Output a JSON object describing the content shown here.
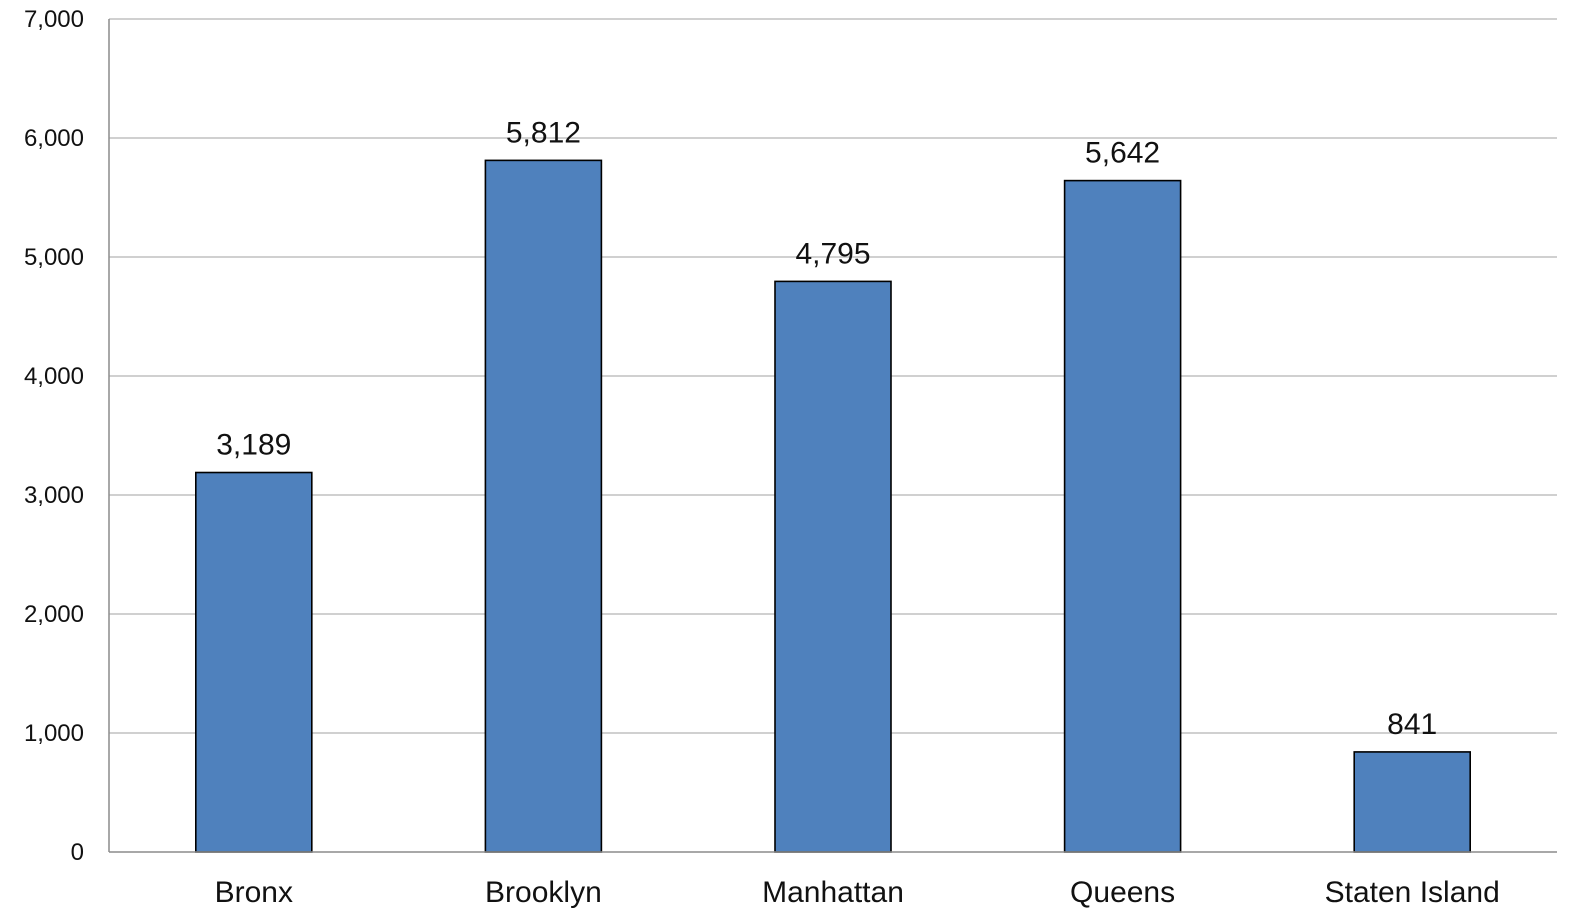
{
  "chart_data": {
    "type": "bar",
    "title": "",
    "xlabel": "",
    "ylabel": "",
    "categories": [
      "Bronx",
      "Brooklyn",
      "Manhattan",
      "Queens",
      "Staten Island"
    ],
    "values": [
      3189,
      5812,
      4795,
      5642,
      841
    ],
    "data_labels": [
      "3,189",
      "5,812",
      "4,795",
      "5,642",
      "841"
    ],
    "ylim": [
      0,
      7000
    ],
    "yticks": [
      0,
      1000,
      2000,
      3000,
      4000,
      5000,
      6000,
      7000
    ],
    "ytick_labels": [
      "0",
      "1,000",
      "2,000",
      "3,000",
      "4,000",
      "5,000",
      "6,000",
      "7,000"
    ],
    "grid": true,
    "legend": "none",
    "colors": {
      "bar_fill": "#4f81bd",
      "bar_stroke": "#000000",
      "grid": "#b3b3b3",
      "axis": "#8c8c8c",
      "text": "#111111"
    }
  }
}
